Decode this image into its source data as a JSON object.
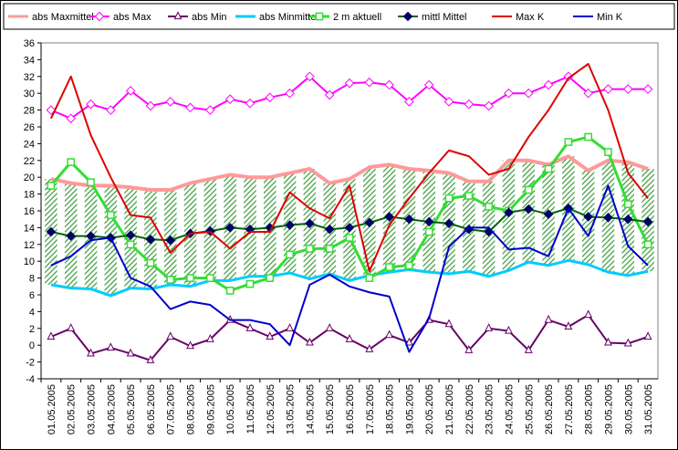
{
  "chart_data": {
    "type": "line",
    "categories": [
      "01.05.2005",
      "02.05.2005",
      "03.05.2005",
      "04.05.2005",
      "05.05.2005",
      "06.05.2005",
      "07.05.2005",
      "08.05.2005",
      "09.05.2005",
      "10.05.2005",
      "11.05.2005",
      "12.05.2005",
      "13.05.2005",
      "14.05.2005",
      "15.05.2005",
      "16.05.2005",
      "17.05.2005",
      "18.05.2005",
      "19.05.2005",
      "20.05.2005",
      "21.05.2005",
      "22.05.2005",
      "23.05.2005",
      "24.05.2005",
      "25.05.2005",
      "26.05.2005",
      "27.05.2005",
      "28.05.2005",
      "29.05.2005",
      "30.05.2005",
      "31.05.2005"
    ],
    "ylim": [
      -4,
      36
    ],
    "yticks": [
      -4,
      -2,
      0,
      2,
      4,
      6,
      8,
      10,
      12,
      14,
      16,
      18,
      20,
      22,
      24,
      26,
      28,
      30,
      32,
      34,
      36
    ],
    "grid": "none",
    "legend_position": "top",
    "band": {
      "name_upper": "abs Maxmittel",
      "name_lower": "abs Minmittel",
      "fill_color": "#3a9a3a"
    },
    "series": [
      {
        "name": "abs Maxmittel",
        "color": "#ff9999",
        "marker": "none",
        "width": 4,
        "values": [
          19.8,
          19.3,
          19.0,
          19.0,
          18.8,
          18.5,
          18.5,
          19.3,
          19.8,
          20.3,
          20.0,
          20.0,
          20.5,
          21.0,
          19.3,
          19.8,
          21.2,
          21.5,
          21.0,
          20.8,
          20.5,
          19.5,
          19.5,
          22.0,
          22.0,
          21.5,
          22.5,
          20.8,
          22.0,
          21.8,
          21.0
        ]
      },
      {
        "name": "abs Max",
        "color": "#ff00ff",
        "marker": "diamond-open",
        "values": [
          28.0,
          27.0,
          28.7,
          28.0,
          30.3,
          28.5,
          29.0,
          28.3,
          28.0,
          29.3,
          28.8,
          29.5,
          30.0,
          32.0,
          29.8,
          31.2,
          31.3,
          31.0,
          29.0,
          31.0,
          29.0,
          28.7,
          28.5,
          30.0,
          30.0,
          31.0,
          32.0,
          30.0,
          30.5,
          30.5,
          30.5
        ]
      },
      {
        "name": "abs Min",
        "color": "#660066",
        "marker": "triangle-open",
        "values": [
          1.0,
          2.0,
          -1.0,
          -0.3,
          -1.0,
          -1.8,
          1.0,
          -0.1,
          0.7,
          3.0,
          2.0,
          1.0,
          2.0,
          0.3,
          2.0,
          0.7,
          -0.5,
          1.2,
          0.3,
          3.0,
          2.5,
          -0.6,
          2.0,
          1.7,
          -0.6,
          3.0,
          2.2,
          3.6,
          0.3,
          0.2,
          1.0
        ]
      },
      {
        "name": "abs Minmittel",
        "color": "#00ccff",
        "marker": "none",
        "width": 3,
        "values": [
          7.2,
          6.8,
          6.7,
          5.9,
          6.8,
          6.7,
          7.2,
          7.0,
          7.7,
          7.7,
          8.2,
          8.2,
          8.6,
          7.9,
          8.5,
          7.7,
          8.3,
          8.7,
          9.0,
          8.7,
          8.5,
          8.8,
          8.2,
          8.9,
          9.9,
          9.5,
          10.1,
          9.6,
          8.7,
          8.3,
          8.8
        ]
      },
      {
        "name": "2 m aktuell",
        "color": "#33dd33",
        "marker": "square-open",
        "width": 3,
        "values": [
          19.0,
          21.8,
          19.4,
          15.5,
          12.0,
          9.8,
          7.8,
          8.0,
          8.0,
          6.5,
          7.3,
          8.0,
          10.8,
          11.5,
          11.5,
          12.8,
          8.0,
          9.3,
          9.5,
          13.5,
          17.5,
          17.8,
          16.5,
          16.0,
          18.5,
          21.0,
          24.2,
          24.8,
          23.0,
          16.8,
          12.0
        ]
      },
      {
        "name": "mittl Mittel",
        "color": "#006600",
        "marker": "diamond-filled",
        "marker_color": "#000066",
        "values": [
          13.5,
          13.0,
          13.0,
          12.8,
          13.1,
          12.6,
          12.5,
          13.3,
          13.6,
          14.0,
          13.8,
          14.0,
          14.3,
          14.5,
          13.8,
          14.0,
          14.6,
          15.3,
          15.0,
          14.7,
          14.5,
          13.8,
          13.5,
          15.8,
          16.2,
          15.6,
          16.3,
          15.3,
          15.2,
          15.0,
          14.7
        ]
      },
      {
        "name": "Max K",
        "color": "#dd0000",
        "marker": "none",
        "values": [
          27.0,
          32.0,
          25.0,
          20.0,
          15.5,
          15.2,
          11.0,
          13.3,
          13.5,
          11.5,
          13.5,
          13.5,
          18.2,
          16.3,
          15.1,
          19.0,
          8.8,
          14.3,
          17.5,
          20.5,
          23.2,
          22.5,
          20.3,
          21.0,
          24.8,
          28.0,
          31.8,
          33.5,
          28.0,
          20.5,
          17.5
        ]
      },
      {
        "name": "Min K",
        "color": "#0000cc",
        "marker": "none",
        "values": [
          9.5,
          10.6,
          12.5,
          12.8,
          8.0,
          7.0,
          4.3,
          5.2,
          4.8,
          3.0,
          3.0,
          2.5,
          0.0,
          7.2,
          8.4,
          7.0,
          6.3,
          5.8,
          -0.8,
          3.2,
          11.7,
          14.0,
          14.0,
          11.4,
          11.6,
          10.6,
          16.3,
          13.0,
          19.0,
          11.8,
          9.5
        ]
      }
    ]
  }
}
